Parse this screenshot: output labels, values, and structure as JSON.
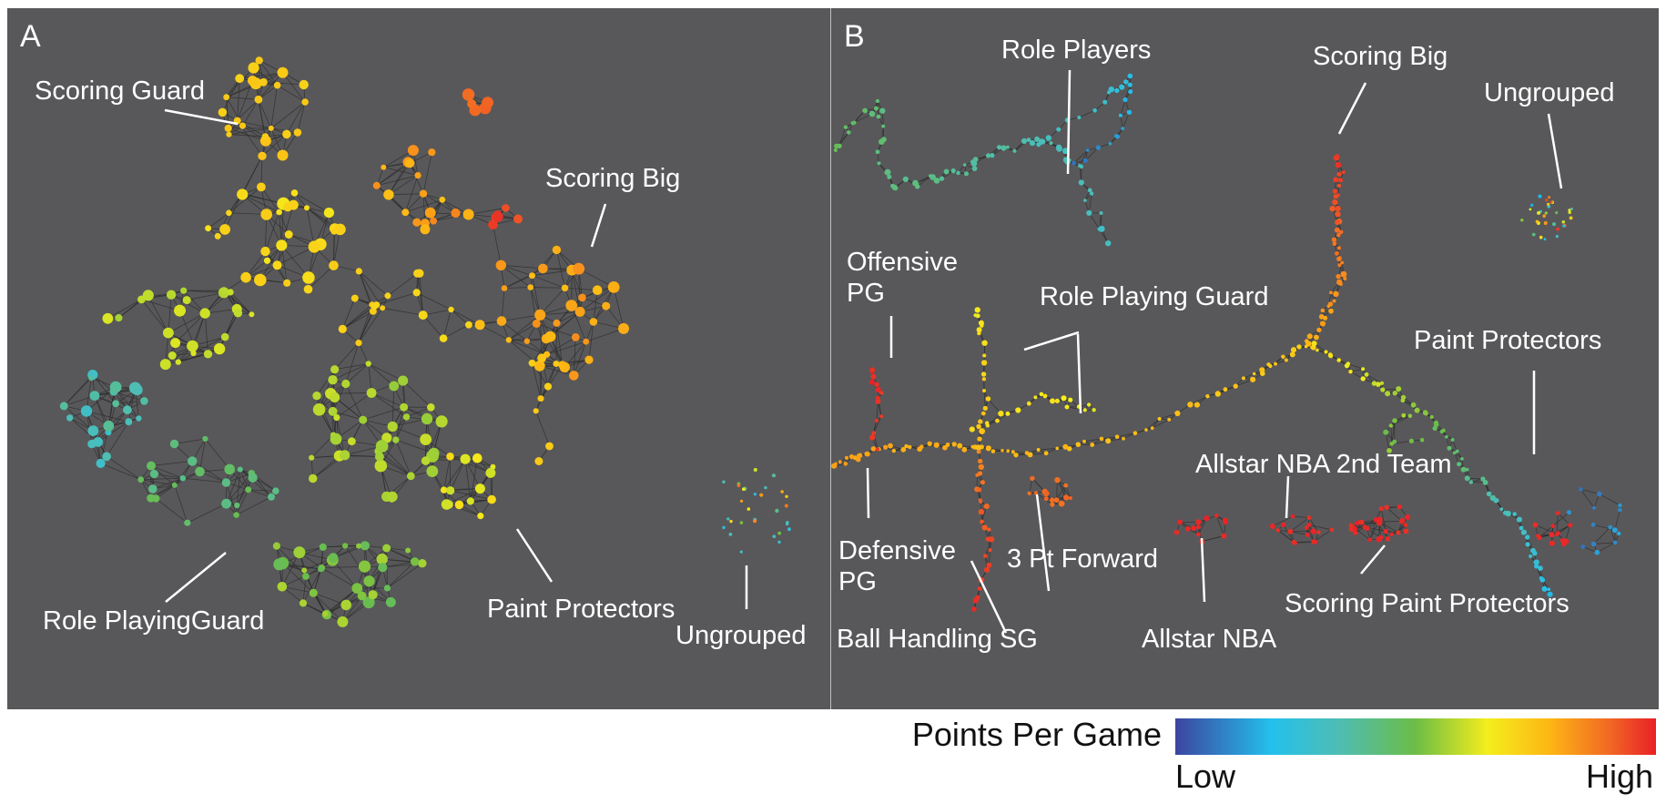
{
  "panels": [
    {
      "letter": "A",
      "labels": [
        "Scoring Guard",
        "Scoring Big",
        "Role PlayingGuard",
        "Paint Protectors",
        "Ungrouped"
      ]
    },
    {
      "letter": "B",
      "labels": [
        "Role Players",
        "Scoring Big",
        "Ungrouped",
        "Offensive\nPG",
        "Role Playing Guard",
        "Paint Protectors",
        "Allstar NBA 2nd Team",
        "Defensive\nPG",
        "3 Pt Forward",
        "Ball Handling SG",
        "Allstar NBA",
        "Scoring Paint Protectors"
      ]
    }
  ],
  "legend": {
    "title": "Points Per Game",
    "low": "Low",
    "high": "High",
    "colors": [
      "#3c44a0",
      "#24c0ec",
      "#4ebdb4",
      "#6cbd46",
      "#f4ee1c",
      "#fdb514",
      "#f26a24",
      "#e82027"
    ]
  }
}
